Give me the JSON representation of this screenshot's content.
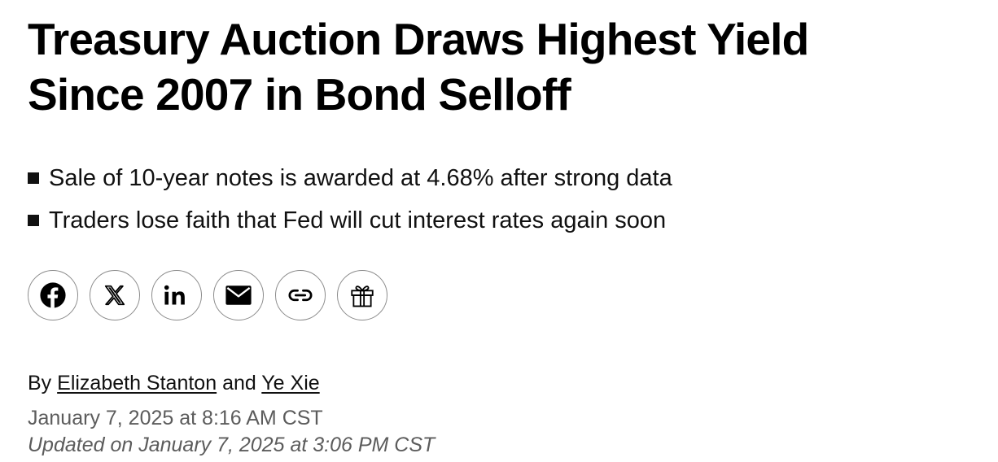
{
  "article": {
    "headline_lines": [
      "Treasury Auction Draws Highest Yield",
      "Since 2007 in Bond Selloff"
    ],
    "bullets": [
      "Sale of 10-year notes is awarded at 4.68% after strong data",
      "Traders lose faith that Fed will cut interest rates again soon"
    ],
    "share_icons": [
      "facebook-icon",
      "x-icon",
      "linkedin-icon",
      "email-icon",
      "link-icon",
      "gift-icon"
    ],
    "byline": {
      "prefix": "By",
      "author_1": "Elizabeth Stanton",
      "conjunction": "and",
      "author_2": "Ye Xie"
    },
    "published": "January 7, 2025 at 8:16 AM CST",
    "updated": "Updated on January 7, 2025 at 3:06 PM CST"
  },
  "colors": {
    "text": "#000000",
    "muted": "#5c5c5c",
    "icon_border": "#8a8a8a"
  }
}
